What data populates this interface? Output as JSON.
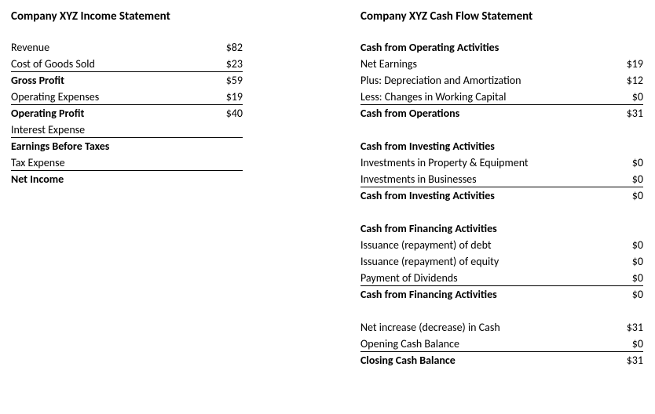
{
  "income": {
    "title": "Company XYZ Income Statement",
    "rows": [
      {
        "label": "Revenue",
        "val": "$82",
        "bold": false,
        "underline": false
      },
      {
        "label": "Cost of Goods Sold",
        "val": "$23",
        "bold": false,
        "underline": true
      },
      {
        "label": "Gross Profit",
        "val": "$59",
        "bold": true,
        "underline": false
      },
      {
        "label": "Operating Expenses",
        "val": "$19",
        "bold": false,
        "underline": true
      },
      {
        "label": "Operating Profit",
        "val": "$40",
        "bold": true,
        "underline": false
      },
      {
        "label": "Interest Expense",
        "val": "",
        "bold": false,
        "underline": true
      },
      {
        "label": "Earnings Before Taxes",
        "val": "",
        "bold": true,
        "underline": false
      },
      {
        "label": "Tax Expense",
        "val": "",
        "bold": false,
        "underline": true
      },
      {
        "label": "Net Income",
        "val": "",
        "bold": true,
        "underline": false
      }
    ]
  },
  "cashflow": {
    "title": "Company XYZ Cash Flow Statement",
    "operating": {
      "head": "Cash from Operating Activities",
      "rows": [
        {
          "label": "Net Earnings",
          "val": "$19",
          "bold": false,
          "underline": false
        },
        {
          "label": "Plus: Depreciation and Amortization",
          "val": "$12",
          "bold": false,
          "underline": false
        },
        {
          "label": "Less: Changes in Working Capital",
          "val": "$0",
          "bold": false,
          "underline": true
        },
        {
          "label": "Cash from Operations",
          "val": "$31",
          "bold": true,
          "underline": false
        }
      ]
    },
    "investing": {
      "head": "Cash from Investing Activities",
      "rows": [
        {
          "label": "Investments in Property & Equipment",
          "val": "$0",
          "bold": false,
          "underline": false
        },
        {
          "label": "Investments in Businesses",
          "val": "$0",
          "bold": false,
          "underline": true
        },
        {
          "label": "Cash from Investing Activities",
          "val": "$0",
          "bold": true,
          "underline": false
        }
      ]
    },
    "financing": {
      "head": "Cash from Financing Activities",
      "rows": [
        {
          "label": "Issuance (repayment) of debt",
          "val": "$0",
          "bold": false,
          "underline": false
        },
        {
          "label": "Issuance (repayment) of equity",
          "val": "$0",
          "bold": false,
          "underline": false
        },
        {
          "label": "Payment of Dividends",
          "val": "$0",
          "bold": false,
          "underline": true
        },
        {
          "label": "Cash from Financing Activities",
          "val": "$0",
          "bold": true,
          "underline": false
        }
      ]
    },
    "summary": {
      "rows": [
        {
          "label": "Net increase (decrease) in Cash",
          "val": "$31",
          "bold": false,
          "underline": false
        },
        {
          "label": "Opening Cash Balance",
          "val": "$0",
          "bold": false,
          "underline": true
        },
        {
          "label": "Closing Cash Balance",
          "val": "$31",
          "bold": true,
          "underline": false
        }
      ]
    }
  }
}
